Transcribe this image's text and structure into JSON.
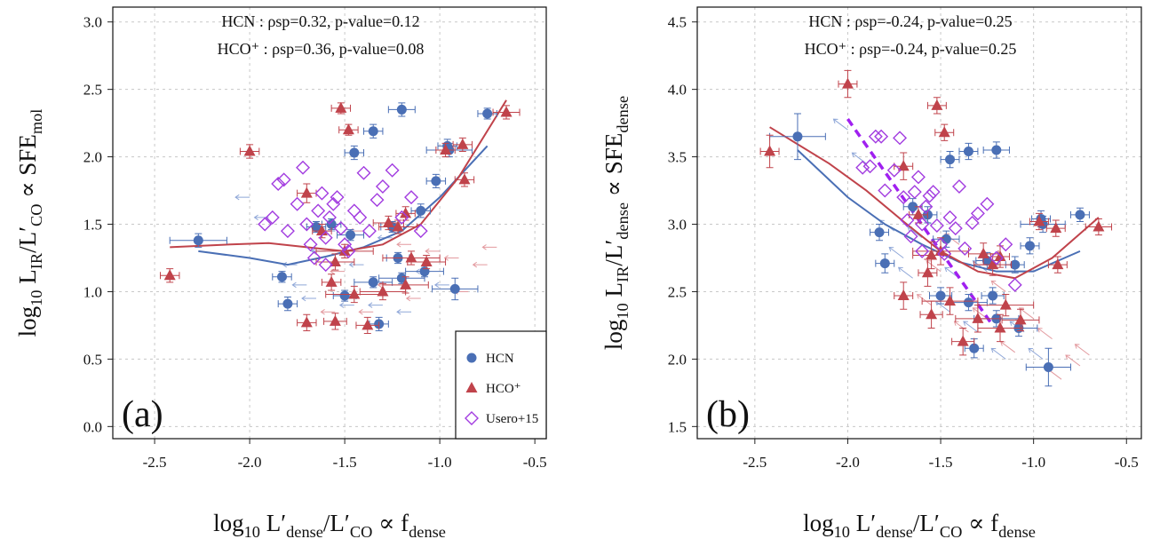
{
  "chart_data": [
    {
      "type": "scatter",
      "panel_label": "(a)",
      "x_label": [
        "log",
        "10",
        " L′",
        "dense",
        "/L′",
        "CO",
        " ∝ f",
        "dense"
      ],
      "y_label": [
        "log",
        "10",
        " L",
        "IR",
        "/L′",
        "CO",
        " ∝ SFE",
        "mol"
      ],
      "annotations": [
        "HCN : ρsp=0.32, p-value=0.12",
        "HCO⁺ : ρsp=0.36, p-value=0.08"
      ],
      "xlim": [
        -2.72,
        -0.44
      ],
      "ylim": [
        -0.09,
        3.11
      ],
      "xticks": [
        -2.5,
        {
          "value": -2,
          "label": "-2.0"
        },
        -1.5,
        {
          "value": -1,
          "label": "-1.0"
        },
        -0.5
      ],
      "yticks": [
        {
          "value": 0,
          "label": "0.0"
        },
        0.5,
        {
          "value": 1,
          "label": "1.0"
        },
        1.5,
        {
          "value": 2,
          "label": "2.0"
        },
        2.5,
        {
          "value": 3,
          "label": "3.0"
        }
      ],
      "grid": true,
      "legend": "lower right",
      "arrow": "left",
      "series": [
        {
          "name": "HCN",
          "marker": "circle",
          "color": "#4a6fb5",
          "x": [
            -2.27,
            -1.83,
            -1.8,
            -1.65,
            -1.57,
            -1.47,
            -1.5,
            -1.45,
            -1.35,
            -1.35,
            -1.32,
            -1.22,
            -1.2,
            -1.2,
            -1.1,
            -1.08,
            -1.02,
            -0.96,
            -0.95,
            -0.92,
            -0.75,
            -1.25
          ],
          "values": [
            1.38,
            1.11,
            0.91,
            1.48,
            1.5,
            1.42,
            0.97,
            2.03,
            2.19,
            1.07,
            0.76,
            1.25,
            2.35,
            1.1,
            1.6,
            1.15,
            1.82,
            2.08,
            2.05,
            1.02,
            2.32,
            1.48
          ],
          "xerr": [
            0.15,
            0.05,
            0.05,
            0.05,
            0.05,
            0.07,
            0.06,
            0.05,
            0.05,
            0.1,
            0.05,
            0.06,
            0.07,
            0.12,
            0.05,
            0.1,
            0.05,
            0.05,
            0.12,
            0.12,
            0.05,
            0.06
          ],
          "yerr": [
            0.05,
            0.04,
            0.05,
            0.04,
            0.04,
            0.04,
            0.04,
            0.05,
            0.05,
            0.04,
            0.05,
            0.04,
            0.05,
            0.04,
            0.05,
            0.04,
            0.05,
            0.05,
            0.05,
            0.08,
            0.04,
            0.04
          ]
        },
        {
          "name": "HCO⁺",
          "marker": "triangle",
          "color": "#c0434b",
          "x": [
            -2.42,
            -2.0,
            -1.7,
            -1.7,
            -1.57,
            -1.55,
            -1.55,
            -1.52,
            -1.48,
            -1.5,
            -1.45,
            -1.38,
            -1.3,
            -1.27,
            -1.22,
            -1.18,
            -1.18,
            -1.15,
            -1.07,
            -0.97,
            -0.88,
            -0.87,
            -0.65,
            -1.62
          ],
          "values": [
            1.12,
            2.04,
            1.73,
            0.77,
            1.07,
            0.78,
            1.22,
            2.36,
            2.2,
            1.3,
            0.98,
            0.75,
            1.0,
            1.51,
            1.48,
            1.05,
            1.58,
            1.25,
            1.22,
            2.05,
            2.09,
            1.83,
            2.33,
            1.45
          ],
          "xerr": [
            0.05,
            0.05,
            0.05,
            0.05,
            0.05,
            0.06,
            0.1,
            0.05,
            0.05,
            0.15,
            0.15,
            0.06,
            0.12,
            0.08,
            0.1,
            0.12,
            0.05,
            0.15,
            0.1,
            0.05,
            0.05,
            0.05,
            0.07,
            0.05
          ],
          "yerr": [
            0.05,
            0.05,
            0.07,
            0.06,
            0.06,
            0.06,
            0.06,
            0.04,
            0.04,
            0.05,
            0.06,
            0.06,
            0.06,
            0.05,
            0.05,
            0.06,
            0.05,
            0.05,
            0.05,
            0.05,
            0.05,
            0.05,
            0.05,
            0.05
          ]
        },
        {
          "name": "Usero+15",
          "marker": "diamond",
          "color": "#a23ce0",
          "x": [
            -1.92,
            -1.88,
            -1.85,
            -1.82,
            -1.8,
            -1.75,
            -1.72,
            -1.7,
            -1.68,
            -1.66,
            -1.64,
            -1.62,
            -1.6,
            -1.58,
            -1.56,
            -1.54,
            -1.52,
            -1.5,
            -1.48,
            -1.45,
            -1.42,
            -1.4,
            -1.37,
            -1.33,
            -1.3,
            -1.25,
            -1.2,
            -1.15,
            -1.1,
            -1.6
          ],
          "values": [
            1.5,
            1.55,
            1.8,
            1.83,
            1.45,
            1.65,
            1.92,
            1.5,
            1.35,
            1.25,
            1.6,
            1.73,
            1.4,
            1.55,
            1.65,
            1.7,
            1.47,
            1.35,
            1.3,
            1.6,
            1.55,
            1.88,
            1.45,
            1.68,
            1.78,
            1.9,
            1.55,
            1.7,
            1.45,
            1.2
          ]
        }
      ],
      "upper_limits": [
        {
          "color": "#8fa7d8",
          "x": [
            -2.0,
            -1.9,
            -1.75,
            -1.7,
            -1.65,
            -1.6,
            -1.55,
            -1.45,
            -1.4,
            -1.3,
            -1.25,
            -1.15,
            -1.05,
            -0.95
          ],
          "values": [
            1.7,
            1.55,
            1.2,
            1.05,
            0.95,
            1.3,
            1.45,
            0.9,
            1.2,
            0.9,
            1.4,
            0.85,
            1.15,
            1.05
          ]
        },
        {
          "color": "#e39a9f",
          "x": [
            -1.55,
            -1.5,
            -1.4,
            -1.35,
            -1.25,
            -1.15,
            -1.1,
            -1.0,
            -0.9,
            -0.85,
            -0.75,
            -0.7
          ],
          "values": [
            0.85,
            1.15,
            1.45,
            0.85,
            1.05,
            1.35,
            0.95,
            1.3,
            1.25,
            1.0,
            1.2,
            1.33
          ]
        }
      ],
      "trends": [
        {
          "color": "#4a6fb5",
          "x": [
            -2.27,
            -2.0,
            -1.8,
            -1.6,
            -1.4,
            -1.2,
            -1.0,
            -0.75
          ],
          "values": [
            1.3,
            1.25,
            1.2,
            1.26,
            1.33,
            1.45,
            1.7,
            2.08
          ]
        },
        {
          "color": "#c0434b",
          "x": [
            -2.42,
            -2.1,
            -1.9,
            -1.7,
            -1.5,
            -1.3,
            -1.1,
            -0.9,
            -0.65
          ],
          "values": [
            1.33,
            1.35,
            1.36,
            1.33,
            1.3,
            1.35,
            1.5,
            1.85,
            2.42
          ]
        }
      ]
    },
    {
      "type": "scatter",
      "panel_label": "(b)",
      "x_label": [
        "log",
        "10",
        " L′",
        "dense",
        "/L′",
        "CO",
        " ∝ f",
        "dense"
      ],
      "y_label": [
        "log",
        "10",
        " L",
        "IR",
        "/L′",
        "dense",
        " ∝ SFE",
        "dense"
      ],
      "annotations": [
        "HCN : ρsp=-0.24, p-value=0.25",
        "HCO⁺ : ρsp=-0.24, p-value=0.25"
      ],
      "xlim": [
        -2.81,
        -0.42
      ],
      "ylim": [
        1.41,
        4.61
      ],
      "xticks": [
        -2.5,
        {
          "value": -2,
          "label": "-2.0"
        },
        -1.5,
        {
          "value": -1,
          "label": "-1.0"
        },
        -0.5
      ],
      "yticks": [
        1.5,
        {
          "value": 2,
          "label": "2.0"
        },
        2.5,
        {
          "value": 3,
          "label": "3.0"
        },
        3.5,
        {
          "value": 4,
          "label": "4.0"
        },
        4.5
      ],
      "grid": true,
      "arrow": "up-left",
      "series": [
        {
          "name": "HCN",
          "marker": "circle",
          "color": "#4a6fb5",
          "x": [
            -2.27,
            -1.83,
            -1.8,
            -1.65,
            -1.57,
            -1.47,
            -1.5,
            -1.45,
            -1.35,
            -1.35,
            -1.32,
            -1.22,
            -1.2,
            -1.2,
            -1.1,
            -1.08,
            -1.02,
            -0.96,
            -0.95,
            -0.92,
            -0.75,
            -1.25
          ],
          "values": [
            3.65,
            2.94,
            2.71,
            3.13,
            3.07,
            2.89,
            2.47,
            3.48,
            3.54,
            2.42,
            2.08,
            2.47,
            3.55,
            2.3,
            2.7,
            2.23,
            2.84,
            3.04,
            3.0,
            1.94,
            3.07,
            2.73
          ],
          "xerr": [
            0.15,
            0.05,
            0.05,
            0.05,
            0.05,
            0.07,
            0.06,
            0.05,
            0.05,
            0.1,
            0.05,
            0.06,
            0.07,
            0.12,
            0.05,
            0.1,
            0.05,
            0.05,
            0.12,
            0.12,
            0.05,
            0.06
          ],
          "yerr": [
            0.17,
            0.06,
            0.07,
            0.06,
            0.06,
            0.06,
            0.06,
            0.06,
            0.06,
            0.06,
            0.07,
            0.06,
            0.06,
            0.06,
            0.06,
            0.06,
            0.06,
            0.06,
            0.06,
            0.14,
            0.05,
            0.06
          ]
        },
        {
          "name": "HCO⁺",
          "marker": "triangle",
          "color": "#c0434b",
          "x": [
            -2.42,
            -2.0,
            -1.7,
            -1.7,
            -1.57,
            -1.55,
            -1.55,
            -1.52,
            -1.48,
            -1.5,
            -1.45,
            -1.38,
            -1.3,
            -1.27,
            -1.22,
            -1.18,
            -1.18,
            -1.15,
            -1.07,
            -0.97,
            -0.88,
            -0.87,
            -0.65,
            -1.62
          ],
          "values": [
            3.54,
            4.04,
            3.43,
            2.47,
            2.64,
            2.33,
            2.77,
            3.88,
            3.68,
            2.8,
            2.43,
            2.13,
            2.3,
            2.78,
            2.7,
            2.23,
            2.76,
            2.4,
            2.29,
            3.02,
            2.97,
            2.7,
            2.98,
            3.07
          ],
          "xerr": [
            0.05,
            0.05,
            0.05,
            0.05,
            0.05,
            0.06,
            0.1,
            0.05,
            0.05,
            0.15,
            0.15,
            0.06,
            0.12,
            0.08,
            0.1,
            0.12,
            0.05,
            0.15,
            0.1,
            0.05,
            0.05,
            0.05,
            0.07,
            0.05
          ],
          "yerr": [
            0.12,
            0.1,
            0.1,
            0.1,
            0.1,
            0.1,
            0.1,
            0.06,
            0.06,
            0.1,
            0.1,
            0.1,
            0.1,
            0.08,
            0.08,
            0.1,
            0.08,
            0.08,
            0.08,
            0.06,
            0.06,
            0.06,
            0.06,
            0.06
          ]
        },
        {
          "name": "Usero+15",
          "marker": "diamond",
          "color": "#a23ce0",
          "x": [
            -1.92,
            -1.88,
            -1.85,
            -1.82,
            -1.8,
            -1.75,
            -1.72,
            -1.7,
            -1.68,
            -1.66,
            -1.64,
            -1.62,
            -1.6,
            -1.58,
            -1.56,
            -1.54,
            -1.52,
            -1.5,
            -1.48,
            -1.45,
            -1.42,
            -1.4,
            -1.37,
            -1.33,
            -1.3,
            -1.25,
            -1.2,
            -1.15,
            -1.1,
            -1.6
          ],
          "values": [
            3.42,
            3.43,
            3.65,
            3.65,
            3.25,
            3.4,
            3.64,
            3.2,
            3.03,
            2.91,
            3.24,
            3.35,
            3.0,
            3.13,
            3.21,
            3.24,
            2.99,
            2.85,
            2.78,
            3.05,
            2.97,
            3.28,
            2.82,
            3.01,
            3.08,
            3.15,
            2.75,
            2.85,
            2.55,
            2.8
          ]
        }
      ],
      "upper_limits": [
        {
          "color": "#8fa7d8",
          "x": [
            -2.0,
            -1.9,
            -1.75,
            -1.7,
            -1.65,
            -1.6,
            -1.55,
            -1.45,
            -1.4,
            -1.3,
            -1.25,
            -1.15,
            -1.05,
            -0.95
          ],
          "values": [
            3.7,
            3.45,
            2.95,
            2.75,
            2.6,
            2.9,
            3.0,
            2.35,
            2.6,
            2.2,
            2.65,
            2.0,
            2.2,
            2.0
          ]
        },
        {
          "color": "#e39a9f",
          "x": [
            -1.55,
            -1.5,
            -1.4,
            -1.35,
            -1.25,
            -1.15,
            -1.1,
            -1.0,
            -0.9,
            -0.85,
            -0.75,
            -0.7
          ],
          "values": [
            2.4,
            2.65,
            2.85,
            2.2,
            2.3,
            2.5,
            2.05,
            2.3,
            2.15,
            1.85,
            1.95,
            2.03
          ]
        }
      ],
      "trends": [
        {
          "color": "#4a6fb5",
          "x": [
            -2.27,
            -2.0,
            -1.8,
            -1.6,
            -1.4,
            -1.2,
            -1.0,
            -0.75
          ],
          "values": [
            3.55,
            3.2,
            3.0,
            2.85,
            2.72,
            2.65,
            2.65,
            2.8
          ]
        },
        {
          "color": "#c0434b",
          "x": [
            -2.42,
            -2.1,
            -1.9,
            -1.7,
            -1.5,
            -1.3,
            -1.1,
            -0.9,
            -0.65
          ],
          "values": [
            3.72,
            3.45,
            3.25,
            3.02,
            2.8,
            2.65,
            2.6,
            2.75,
            3.05
          ]
        },
        {
          "color": "#a020f0",
          "dashed": true,
          "x": [
            -2.0,
            -1.22
          ],
          "values": [
            3.78,
            2.25
          ]
        }
      ]
    }
  ]
}
